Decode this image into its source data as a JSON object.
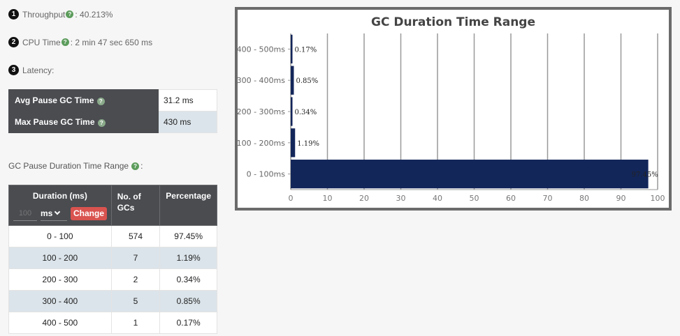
{
  "metrics": {
    "throughput": {
      "num": "1",
      "label": "Throughput",
      "value": " : 40.213%"
    },
    "cpu_time": {
      "num": "2",
      "label": "CPU Time",
      "value": " : 2 min 47 sec 650 ms"
    },
    "latency": {
      "num": "3",
      "label": "Latency:"
    }
  },
  "help_glyph": "?",
  "pause_stats": [
    {
      "label": "Avg Pause GC Time",
      "value": "31.2 ms"
    },
    {
      "label": "Max Pause GC Time",
      "value": "430 ms"
    }
  ],
  "range_section": {
    "title": "GC Pause Duration Time Range",
    "suffix": ":"
  },
  "duration_table": {
    "headers": {
      "duration": "Duration (ms)",
      "count": "No. of GCs",
      "percentage": "Percentage"
    },
    "unit_placeholder": "100",
    "unit_selected": "ms",
    "change_label": "Change",
    "rows": [
      {
        "range": "0 - 100",
        "count": "574",
        "percent": "97.45%"
      },
      {
        "range": "100 - 200",
        "count": "7",
        "percent": "1.19%"
      },
      {
        "range": "200 - 300",
        "count": "2",
        "percent": "0.34%"
      },
      {
        "range": "300 - 400",
        "count": "5",
        "percent": "0.85%"
      },
      {
        "range": "400 - 500",
        "count": "1",
        "percent": "0.17%"
      }
    ]
  },
  "colors": {
    "bar": "#13265a",
    "header_bg": "#4a4c50",
    "accent_red": "#d9534f",
    "help_green": "#5c9c5c"
  },
  "chart_data": {
    "type": "bar",
    "orientation": "horizontal",
    "title": "GC Duration Time Range",
    "categories": [
      "0 - 100ms",
      "100 - 200ms",
      "200 - 300ms",
      "300 - 400ms",
      "400 - 500ms"
    ],
    "values": [
      97.45,
      1.19,
      0.34,
      0.85,
      0.17
    ],
    "data_labels": [
      "97.45%",
      "1.19%",
      "0.34%",
      "0.85%",
      "0.17%"
    ],
    "xlim": [
      0,
      100
    ],
    "xticks": [
      0,
      10,
      20,
      30,
      40,
      50,
      60,
      70,
      80,
      90,
      100
    ],
    "grid": "vertical",
    "bar_color": "#13265a"
  }
}
